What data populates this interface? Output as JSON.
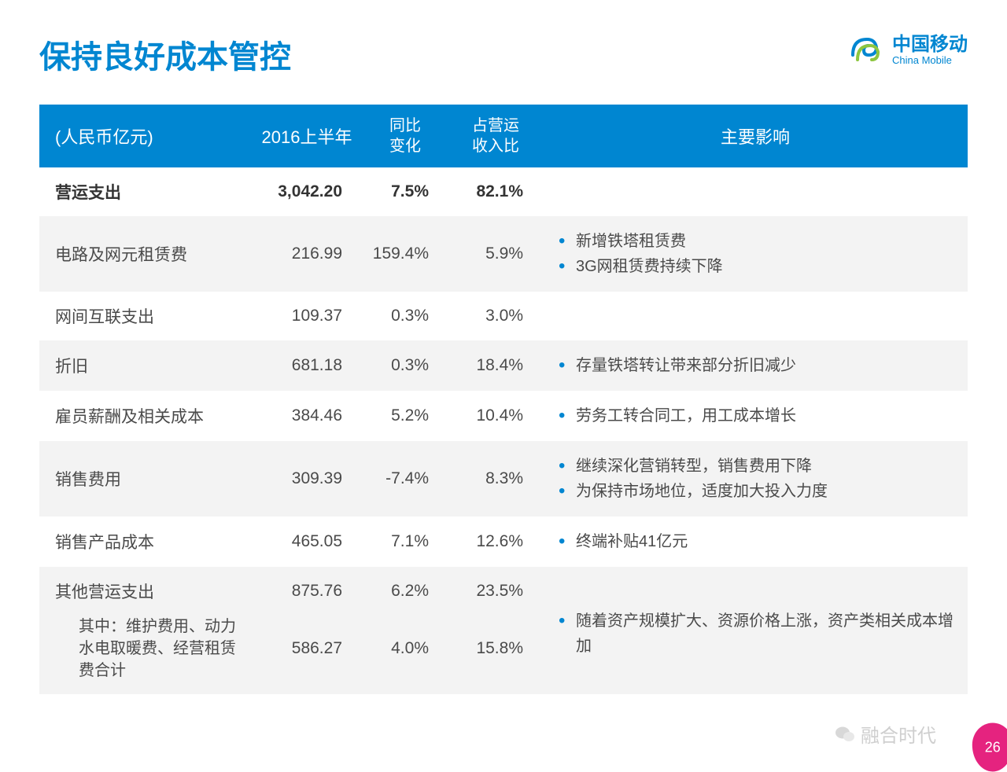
{
  "title": "保持良好成本管控",
  "logo": {
    "cn": "中国移动",
    "en": "China Mobile"
  },
  "columns": {
    "unit": "(人民币亿元)",
    "period": "2016上半年",
    "yoy": "同比\n变化",
    "ratio": "占营运\n收入比",
    "impact": "主要影响"
  },
  "rows": [
    {
      "label": "营运支出",
      "value": "3,042.20",
      "yoy": "7.5%",
      "ratio": "82.1%",
      "bold": true,
      "stripe": false,
      "impacts": []
    },
    {
      "label": "电路及网元租赁费",
      "value": "216.99",
      "yoy": "159.4%",
      "ratio": "5.9%",
      "stripe": true,
      "impacts": [
        "新增铁塔租赁费",
        "3G网租赁费持续下降"
      ]
    },
    {
      "label": "网间互联支出",
      "value": "109.37",
      "yoy": "0.3%",
      "ratio": "3.0%",
      "stripe": false,
      "impacts": []
    },
    {
      "label": "折旧",
      "value": "681.18",
      "yoy": "0.3%",
      "ratio": "18.4%",
      "stripe": true,
      "impacts": [
        "存量铁塔转让带来部分折旧减少"
      ]
    },
    {
      "label": "雇员薪酬及相关成本",
      "value": "384.46",
      "yoy": "5.2%",
      "ratio": "10.4%",
      "stripe": false,
      "impacts": [
        "劳务工转合同工，用工成本增长"
      ]
    },
    {
      "label": "销售费用",
      "value": "309.39",
      "yoy": "-7.4%",
      "ratio": "8.3%",
      "stripe": true,
      "impacts": [
        "继续深化营销转型，销售费用下降",
        "为保持市场地位，适度加大投入力度"
      ]
    },
    {
      "label": "销售产品成本",
      "value": "465.05",
      "yoy": "7.1%",
      "ratio": "12.6%",
      "stripe": false,
      "impacts": [
        "终端补贴41亿元"
      ]
    },
    {
      "label": "其他营运支出",
      "value": "875.76",
      "yoy": "6.2%",
      "ratio": "23.5%",
      "stripe": true,
      "impacts": [
        "随着资产规模扩大、资源价格上涨，资产类相关成本增加"
      ],
      "merged_with_next": true
    },
    {
      "label": "其中：维护费用、动力水电取暖费、经营租赁费合计",
      "value": "586.27",
      "yoy": "4.0%",
      "ratio": "15.8%",
      "stripe": true,
      "sub": true
    }
  ],
  "watermark": "融合时代",
  "page": "26",
  "colors": {
    "brand": "#0086d1",
    "stripe": "#f3f3f3",
    "text": "#4a4a4a",
    "badge": "#e5237f"
  }
}
